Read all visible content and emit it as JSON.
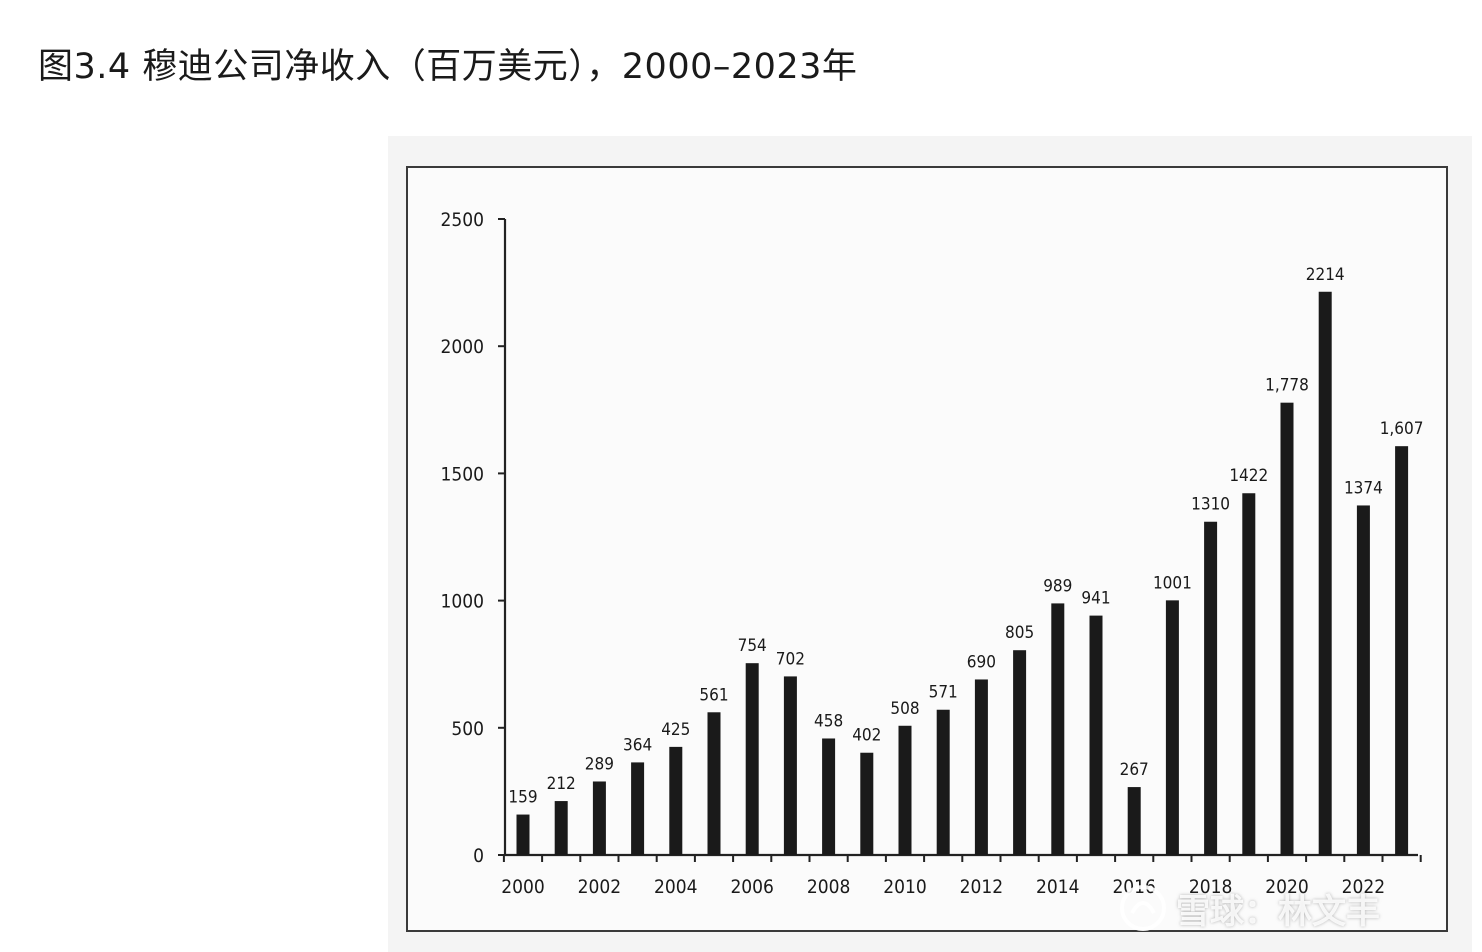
{
  "title": "图3.4 穆迪公司净收入（百万美元），2000–2023年",
  "watermark": {
    "text": "雪球：林文丰"
  },
  "chart_data": {
    "type": "bar",
    "title": "图3.4 穆迪公司净收入（百万美元），2000–2023年",
    "categories": [
      "2000",
      "2001",
      "2002",
      "2003",
      "2004",
      "2005",
      "2006",
      "2007",
      "2008",
      "2009",
      "2010",
      "2011",
      "2012",
      "2013",
      "2014",
      "2015",
      "2016",
      "2017",
      "2018",
      "2019",
      "2020",
      "2021",
      "2022",
      "2023"
    ],
    "values": [
      159,
      212,
      289,
      364,
      425,
      561,
      754,
      702,
      458,
      402,
      508,
      571,
      690,
      805,
      989,
      941,
      267,
      1001,
      1310,
      1422,
      1778,
      2214,
      1374,
      1607
    ],
    "data_labels": [
      "159",
      "212",
      "289",
      "364",
      "425",
      "561",
      "754",
      "702",
      "458",
      "402",
      "508",
      "571",
      "690",
      "805",
      "989",
      "941",
      "267",
      "1001",
      "1310",
      "1422",
      "1,778",
      "2214",
      "1374",
      "1,607"
    ],
    "x_tick_labels": [
      "2000",
      "2002",
      "2004",
      "2006",
      "2008",
      "2010",
      "2012",
      "2014",
      "2016",
      "2018",
      "2020",
      "2022"
    ],
    "y_ticks": [
      0,
      500,
      1000,
      1500,
      2000,
      2500
    ],
    "ylim": [
      0,
      2500
    ],
    "xlabel": "",
    "ylabel": "",
    "grid": false,
    "legend": "none",
    "bar_color": "#1a1a1a"
  }
}
